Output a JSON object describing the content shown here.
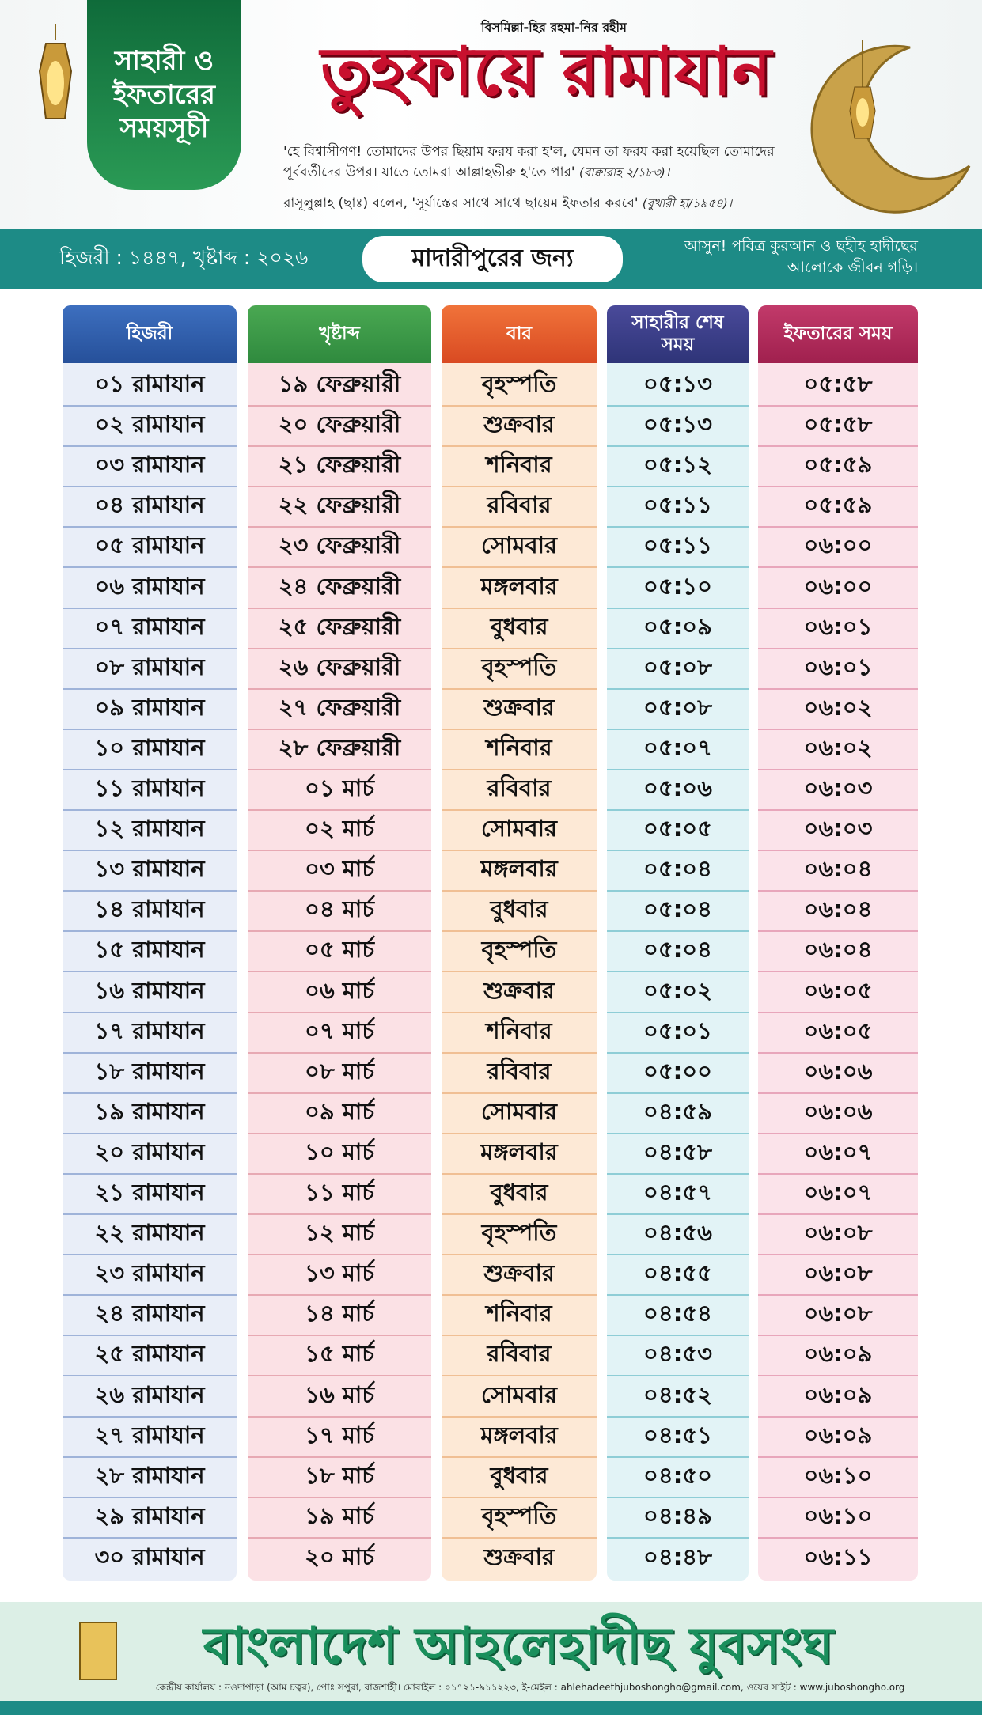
{
  "header": {
    "bismillah": "বিসমিল্লা-হির রহমা-নির রহীম",
    "title": "তুহফায়ে রামাযান",
    "badge": "সাহারী ও ইফতারের সময়সূচী",
    "verse": "'হে বিশ্বাসীগণ! তোমাদের উপর ছিয়াম ফরয করা হ'ল, যেমন তা ফরয করা হয়েছিল তোমাদের পূর্ববর্তীদের উপর। যাতে তোমরা আল্লাহভীরু হ'তে পার'",
    "verse_ref": "(বাক্বারাহ ২/১৮৩)।",
    "hadith": "রাসূলুল্লাহ (ছাঃ) বলেন, 'সূর্যাস্তের সাথে সাথে ছায়েম ইফতার করবে'",
    "hadith_ref": "(বুখারী হা/১৯৫৪)।"
  },
  "band": {
    "year": "হিজরী : ১৪৪৭, খৃষ্টাব্দ : ২০২৬",
    "location": "মাদারীপুরের জন্য",
    "slogan": "আসুন! পবিত্র কুরআন ও ছহীহ হাদীছের আলোকে জীবন গড়ি।"
  },
  "table": {
    "columns": [
      "হিজরী",
      "খৃষ্টাব্দ",
      "বার",
      "সাহারীর শেষ সময়",
      "ইফতারের সময়"
    ],
    "rows": [
      [
        "০১ রামাযান",
        "১৯ ফেব্রুয়ারী",
        "বৃহস্পতি",
        "০৫:১৩",
        "০৫:৫৮"
      ],
      [
        "০২ রামাযান",
        "২০ ফেব্রুয়ারী",
        "শুক্রবার",
        "০৫:১৩",
        "০৫:৫৮"
      ],
      [
        "০৩ রামাযান",
        "২১ ফেব্রুয়ারী",
        "শনিবার",
        "০৫:১২",
        "০৫:৫৯"
      ],
      [
        "০৪ রামাযান",
        "২২ ফেব্রুয়ারী",
        "রবিবার",
        "০৫:১১",
        "০৫:৫৯"
      ],
      [
        "০৫ রামাযান",
        "২৩ ফেব্রুয়ারী",
        "সোমবার",
        "০৫:১১",
        "০৬:০০"
      ],
      [
        "০৬ রামাযান",
        "২৪ ফেব্রুয়ারী",
        "মঙ্গলবার",
        "০৫:১০",
        "০৬:০০"
      ],
      [
        "০৭ রামাযান",
        "২৫ ফেব্রুয়ারী",
        "বুধবার",
        "০৫:০৯",
        "০৬:০১"
      ],
      [
        "০৮ রামাযান",
        "২৬ ফেব্রুয়ারী",
        "বৃহস্পতি",
        "০৫:০৮",
        "০৬:০১"
      ],
      [
        "০৯ রামাযান",
        "২৭ ফেব্রুয়ারী",
        "শুক্রবার",
        "০৫:০৮",
        "০৬:০২"
      ],
      [
        "১০ রামাযান",
        "২৮ ফেব্রুয়ারী",
        "শনিবার",
        "০৫:০৭",
        "০৬:০২"
      ],
      [
        "১১ রামাযান",
        "০১ মার্চ",
        "রবিবার",
        "০৫:০৬",
        "০৬:০৩"
      ],
      [
        "১২ রামাযান",
        "০২ মার্চ",
        "সোমবার",
        "০৫:০৫",
        "০৬:০৩"
      ],
      [
        "১৩ রামাযান",
        "০৩ মার্চ",
        "মঙ্গলবার",
        "০৫:০৪",
        "০৬:০৪"
      ],
      [
        "১৪ রামাযান",
        "০৪ মার্চ",
        "বুধবার",
        "০৫:০৪",
        "০৬:০৪"
      ],
      [
        "১৫ রামাযান",
        "০৫ মার্চ",
        "বৃহস্পতি",
        "০৫:০৪",
        "০৬:০৪"
      ],
      [
        "১৬ রামাযান",
        "০৬ মার্চ",
        "শুক্রবার",
        "০৫:০২",
        "০৬:০৫"
      ],
      [
        "১৭ রামাযান",
        "০৭ মার্চ",
        "শনিবার",
        "০৫:০১",
        "০৬:০৫"
      ],
      [
        "১৮ রামাযান",
        "০৮ মার্চ",
        "রবিবার",
        "০৫:০০",
        "০৬:০৬"
      ],
      [
        "১৯ রামাযান",
        "০৯ মার্চ",
        "সোমবার",
        "০৪:৫৯",
        "০৬:০৬"
      ],
      [
        "২০ রামাযান",
        "১০ মার্চ",
        "মঙ্গলবার",
        "০৪:৫৮",
        "০৬:০৭"
      ],
      [
        "২১ রামাযান",
        "১১ মার্চ",
        "বুধবার",
        "০৪:৫৭",
        "০৬:০৭"
      ],
      [
        "২২ রামাযান",
        "১২ মার্চ",
        "বৃহস্পতি",
        "০৪:৫৬",
        "০৬:০৮"
      ],
      [
        "২৩ রামাযান",
        "১৩ মার্চ",
        "শুক্রবার",
        "০৪:৫৫",
        "০৬:০৮"
      ],
      [
        "২৪ রামাযান",
        "১৪ মার্চ",
        "শনিবার",
        "০৪:৫৪",
        "০৬:০৮"
      ],
      [
        "২৫ রামাযান",
        "১৫ মার্চ",
        "রবিবার",
        "০৪:৫৩",
        "০৬:০৯"
      ],
      [
        "২৬ রামাযান",
        "১৬ মার্চ",
        "সোমবার",
        "০৪:৫২",
        "০৬:০৯"
      ],
      [
        "২৭ রামাযান",
        "১৭ মার্চ",
        "মঙ্গলবার",
        "০৪:৫১",
        "০৬:০৯"
      ],
      [
        "২৮ রামাযান",
        "১৮ মার্চ",
        "বুধবার",
        "০৪:৫০",
        "০৬:১০"
      ],
      [
        "২৯ রামাযান",
        "১৯ মার্চ",
        "বৃহস্পতি",
        "০৪:৪৯",
        "০৬:১০"
      ],
      [
        "৩০ রামাযান",
        "২০ মার্চ",
        "শুক্রবার",
        "০৪:৪৮",
        "০৬:১১"
      ]
    ]
  },
  "footer": {
    "organization": "বাংলাদেশ আহলেহাদীছ যুবসংঘ",
    "address": "কেন্দ্রীয় কার্যালয় : নওদাপাড়া (আম চত্বর), পোঃ সপুরা, রাজশাহী। মোবাইল : ০১৭২১-৯১১২২৩, ই-মেইল : ahlehadeethjuboshongho@gmail.com, ওয়েব সাইট : www.juboshongho.org"
  }
}
